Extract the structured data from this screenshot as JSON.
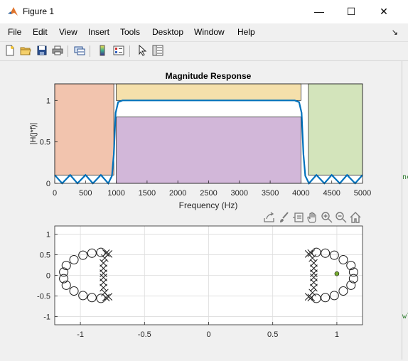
{
  "window": {
    "title": "Figure 1",
    "minimize_glyph": "—",
    "maximize_glyph": "☐",
    "close_glyph": "✕"
  },
  "menu": [
    "File",
    "Edit",
    "View",
    "Insert",
    "Tools",
    "Desktop",
    "Window",
    "Help"
  ],
  "dock_glyph": "↘",
  "toolbar_icons": [
    "new-file-icon",
    "open-folder-icon",
    "save-icon",
    "print-icon",
    "link-icon",
    "colorbar-icon",
    "legend-icon",
    "pointer-icon",
    "property-inspector-icon"
  ],
  "axes_toolbar_icons": [
    "export-icon",
    "brush-icon",
    "data-tips-icon",
    "pan-icon",
    "zoom-in-icon",
    "zoom-out-icon",
    "home-icon"
  ],
  "colors": {
    "stopband_low": "#f2c4ae",
    "passband": "#d2b7d9",
    "passband_top": "#f5e0ab",
    "stopband_high": "#d3e4bb",
    "response_line": "#0072bd",
    "marker_green": "#77ac30"
  },
  "chart_data": [
    {
      "type": "line",
      "title": "Magnitude Response",
      "xlabel": "Frequency (Hz)",
      "ylabel": "|H(j*f)|",
      "xlim": [
        0,
        5000
      ],
      "ylim": [
        0,
        1.2
      ],
      "xticks": [
        "0",
        "500",
        "1000",
        "1500",
        "2000",
        "2500",
        "3000",
        "3500",
        "4000",
        "4500",
        "5000"
      ],
      "xtick_values": [
        0,
        500,
        1000,
        1500,
        2000,
        2500,
        3000,
        3500,
        4000,
        4500,
        5000
      ],
      "yticks": [
        "0",
        "0.5",
        "1"
      ],
      "ytick_values": [
        0,
        0.5,
        1
      ],
      "regions": [
        {
          "x": [
            0,
            960
          ],
          "y": [
            0.1,
            1.2
          ],
          "color": "stopband_low"
        },
        {
          "x": [
            1000,
            4000
          ],
          "y": [
            0,
            0.8
          ],
          "color": "passband"
        },
        {
          "x": [
            1000,
            4000
          ],
          "y": [
            1.0,
            1.2
          ],
          "color": "passband_top"
        },
        {
          "x": [
            4120,
            5000
          ],
          "y": [
            0.1,
            1.2
          ],
          "color": "stopband_high"
        }
      ],
      "series": [
        {
          "x": [
            0,
            120,
            250,
            370,
            500,
            620,
            750,
            870,
            930,
            960,
            990,
            1030,
            1100,
            1500,
            2000,
            2500,
            3000,
            3500,
            3900,
            3970,
            4010,
            4040,
            4070,
            4130,
            4250,
            4380,
            4500,
            4630,
            4750,
            4880,
            5000
          ],
          "y": [
            0.1,
            0,
            0.1,
            0,
            0.1,
            0,
            0.1,
            0,
            0.09,
            0.35,
            0.85,
            0.98,
            1.0,
            1.0,
            1.0,
            1.0,
            1.0,
            1.0,
            1.0,
            0.98,
            0.85,
            0.35,
            0.09,
            0,
            0.1,
            0,
            0.1,
            0,
            0.1,
            0,
            0.1
          ]
        }
      ]
    },
    {
      "type": "scatter",
      "title": "",
      "xlim": [
        -1.2,
        1.2
      ],
      "ylim": [
        -1.2,
        1.2
      ],
      "xticks": [
        "-1",
        "-0.5",
        "0",
        "0.5",
        "1"
      ],
      "xtick_values": [
        -1,
        -0.5,
        0,
        0.5,
        1
      ],
      "yticks": [
        "-1",
        "-0.5",
        "0",
        "0.5",
        "1"
      ],
      "ytick_values": [
        -1,
        -0.5,
        0,
        0.5,
        1
      ],
      "grid": true,
      "zeros": [
        [
          -0.84,
          0.56
        ],
        [
          -0.91,
          0.54
        ],
        [
          -0.98,
          0.49
        ],
        [
          -1.05,
          0.38
        ],
        [
          -1.11,
          0.24
        ],
        [
          -1.13,
          0.08
        ],
        [
          -1.13,
          -0.08
        ],
        [
          -1.11,
          -0.24
        ],
        [
          -1.05,
          -0.38
        ],
        [
          -0.98,
          -0.49
        ],
        [
          -0.91,
          -0.54
        ],
        [
          -0.84,
          -0.56
        ],
        [
          0.84,
          0.56
        ],
        [
          0.91,
          0.54
        ],
        [
          0.98,
          0.49
        ],
        [
          1.05,
          0.38
        ],
        [
          1.11,
          0.24
        ],
        [
          1.13,
          0.08
        ],
        [
          1.13,
          -0.08
        ],
        [
          1.11,
          -0.24
        ],
        [
          1.05,
          -0.38
        ],
        [
          0.98,
          -0.49
        ],
        [
          0.91,
          -0.54
        ],
        [
          0.84,
          -0.56
        ]
      ],
      "poles": [
        [
          -0.8,
          0.54
        ],
        [
          -0.81,
          0.42
        ],
        [
          -0.82,
          0.3
        ],
        [
          -0.82,
          0.17
        ],
        [
          -0.82,
          0.05
        ],
        [
          -0.82,
          -0.05
        ],
        [
          -0.82,
          -0.17
        ],
        [
          -0.82,
          -0.3
        ],
        [
          -0.81,
          -0.42
        ],
        [
          -0.8,
          -0.54
        ],
        [
          0.8,
          0.54
        ],
        [
          0.81,
          0.42
        ],
        [
          0.82,
          0.3
        ],
        [
          0.82,
          0.17
        ],
        [
          0.82,
          0.05
        ],
        [
          0.82,
          -0.05
        ],
        [
          0.82,
          -0.17
        ],
        [
          0.82,
          -0.3
        ],
        [
          0.81,
          -0.42
        ],
        [
          0.8,
          -0.54
        ],
        [
          0.78,
          0.52
        ],
        [
          -0.78,
          0.52
        ],
        [
          0.78,
          -0.52
        ],
        [
          -0.78,
          -0.52
        ]
      ],
      "highlight": [
        1.0,
        0.04
      ]
    }
  ]
}
